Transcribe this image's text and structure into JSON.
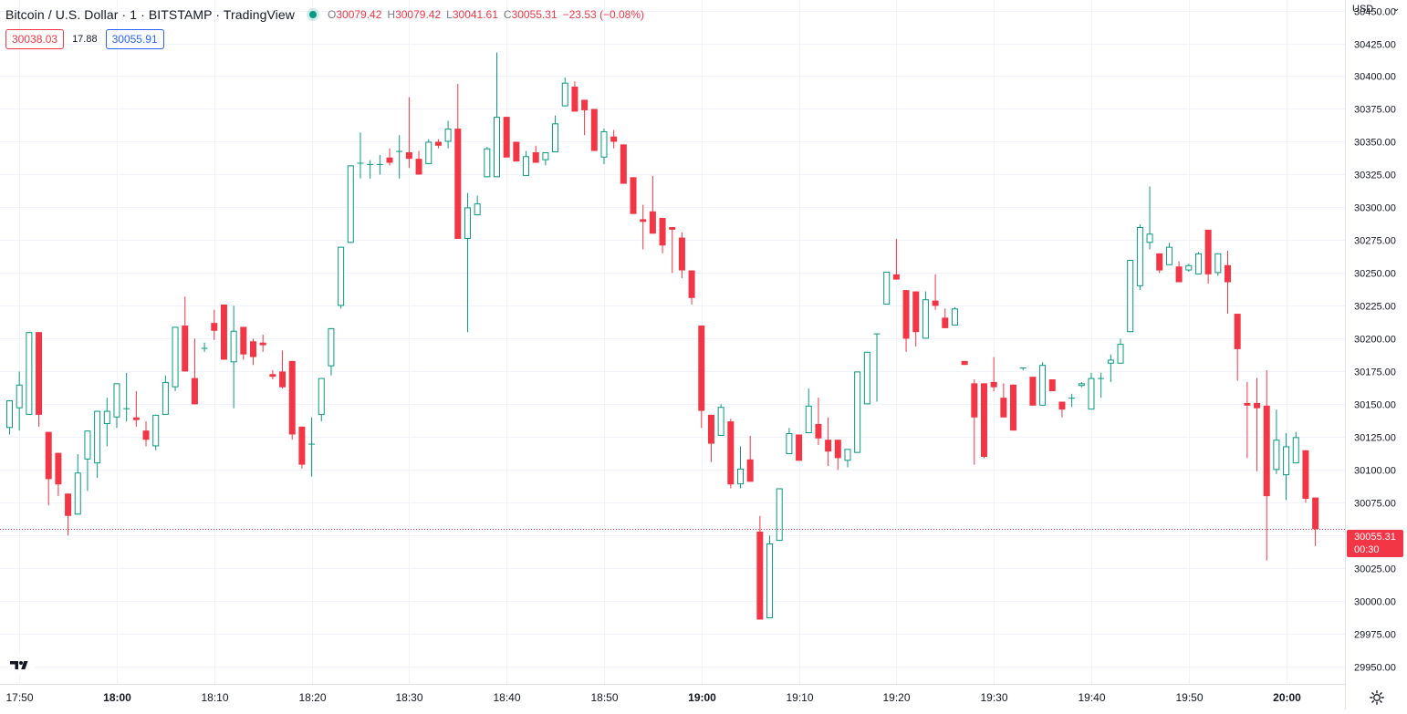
{
  "header": {
    "symbol_title": "Bitcoin / U.S. Dollar · 1 · BITSTAMP · TradingView",
    "ohlc": {
      "o_label": "O",
      "o_value": "30079.42",
      "h_label": "H",
      "h_value": "30079.42",
      "l_label": "L",
      "l_value": "30041.61",
      "c_label": "C",
      "c_value": "30055.31",
      "change": "−23.53 (−0.08%)"
    }
  },
  "quote": {
    "sell": "30038.03",
    "spread": "17.88",
    "buy": "30055.91"
  },
  "price_scale": {
    "currency": "USD",
    "caret": "⌄"
  },
  "last_price": {
    "value": "30055.31",
    "countdown": "00:30"
  },
  "colors": {
    "up": "#089981",
    "down": "#f23645",
    "grid": "#f0f3fa",
    "text": "#131722"
  },
  "icons": {
    "logo": "tradingview-logo-icon",
    "settings": "gear-icon"
  },
  "chart_data": {
    "type": "candlestick",
    "interval_minutes": 1,
    "x_start": "17:49",
    "y_range": [
      29937,
      30458
    ],
    "y_ticks": [
      29950,
      29975,
      30000,
      30025,
      30050,
      30075,
      30100,
      30125,
      30150,
      30175,
      30200,
      30225,
      30250,
      30275,
      30300,
      30325,
      30350,
      30375,
      30400,
      30425,
      30450
    ],
    "y_tick_labels": [
      "29950.00",
      "29975.00",
      "30000.00",
      "30025.00",
      "30050.00",
      "30075.00",
      "30100.00",
      "30125.00",
      "30150.00",
      "30175.00",
      "30200.00",
      "30225.00",
      "30250.00",
      "30275.00",
      "30300.00",
      "30325.00",
      "30350.00",
      "30375.00",
      "30400.00",
      "30425.00",
      "30450.00"
    ],
    "x_ticks": [
      {
        "i": 1,
        "label": "17:50",
        "bold": false
      },
      {
        "i": 11,
        "label": "18:00",
        "bold": true
      },
      {
        "i": 21,
        "label": "18:10",
        "bold": false
      },
      {
        "i": 31,
        "label": "18:20",
        "bold": false
      },
      {
        "i": 41,
        "label": "18:30",
        "bold": false
      },
      {
        "i": 51,
        "label": "18:40",
        "bold": false
      },
      {
        "i": 61,
        "label": "18:50",
        "bold": false
      },
      {
        "i": 71,
        "label": "19:00",
        "bold": true
      },
      {
        "i": 81,
        "label": "19:10",
        "bold": false
      },
      {
        "i": 91,
        "label": "19:20",
        "bold": false
      },
      {
        "i": 101,
        "label": "19:30",
        "bold": false
      },
      {
        "i": 111,
        "label": "19:40",
        "bold": false
      },
      {
        "i": 121,
        "label": "19:50",
        "bold": false
      },
      {
        "i": 131,
        "label": "20:00",
        "bold": true
      }
    ],
    "candles": [
      {
        "o": 30132,
        "h": 30153,
        "l": 30127,
        "c": 30153
      },
      {
        "o": 30147,
        "h": 30175,
        "l": 30130,
        "c": 30165
      },
      {
        "o": 30142,
        "h": 30205,
        "l": 30142,
        "c": 30205
      },
      {
        "o": 30205,
        "h": 30205,
        "l": 30133,
        "c": 30142
      },
      {
        "o": 30129,
        "h": 30129,
        "l": 30073,
        "c": 30093
      },
      {
        "o": 30113,
        "h": 30113,
        "l": 30080,
        "c": 30089
      },
      {
        "o": 30082,
        "h": 30082,
        "l": 30050,
        "c": 30065
      },
      {
        "o": 30066,
        "h": 30112,
        "l": 30066,
        "c": 30098
      },
      {
        "o": 30108,
        "h": 30130,
        "l": 30084,
        "c": 30130
      },
      {
        "o": 30105,
        "h": 30145,
        "l": 30094,
        "c": 30145
      },
      {
        "o": 30135,
        "h": 30155,
        "l": 30118,
        "c": 30145
      },
      {
        "o": 30140,
        "h": 30166,
        "l": 30132,
        "c": 30166
      },
      {
        "o": 30147,
        "h": 30174,
        "l": 30137,
        "c": 30147
      },
      {
        "o": 30140,
        "h": 30160,
        "l": 30133,
        "c": 30138
      },
      {
        "o": 30130,
        "h": 30137,
        "l": 30118,
        "c": 30123
      },
      {
        "o": 30118,
        "h": 30142,
        "l": 30115,
        "c": 30142
      },
      {
        "o": 30142,
        "h": 30172,
        "l": 30142,
        "c": 30167
      },
      {
        "o": 30163,
        "h": 30209,
        "l": 30160,
        "c": 30209
      },
      {
        "o": 30210,
        "h": 30232,
        "l": 30175,
        "c": 30175
      },
      {
        "o": 30170,
        "h": 30200,
        "l": 30150,
        "c": 30150
      },
      {
        "o": 30193,
        "h": 30197,
        "l": 30190,
        "c": 30193
      },
      {
        "o": 30212,
        "h": 30222,
        "l": 30199,
        "c": 30206
      },
      {
        "o": 30226,
        "h": 30226,
        "l": 30184,
        "c": 30184
      },
      {
        "o": 30182,
        "h": 30225,
        "l": 30147,
        "c": 30206
      },
      {
        "o": 30209,
        "h": 30209,
        "l": 30184,
        "c": 30188
      },
      {
        "o": 30198,
        "h": 30200,
        "l": 30180,
        "c": 30186
      },
      {
        "o": 30197,
        "h": 30203,
        "l": 30190,
        "c": 30195
      },
      {
        "o": 30173,
        "h": 30176,
        "l": 30169,
        "c": 30171
      },
      {
        "o": 30175,
        "h": 30191,
        "l": 30162,
        "c": 30163
      },
      {
        "o": 30183,
        "h": 30183,
        "l": 30123,
        "c": 30127
      },
      {
        "o": 30133,
        "h": 30133,
        "l": 30101,
        "c": 30104
      },
      {
        "o": 30120,
        "h": 30140,
        "l": 30095,
        "c": 30120
      },
      {
        "o": 30142,
        "h": 30170,
        "l": 30137,
        "c": 30170
      },
      {
        "o": 30179,
        "h": 30208,
        "l": 30172,
        "c": 30208
      },
      {
        "o": 30225,
        "h": 30270,
        "l": 30223,
        "c": 30270
      },
      {
        "o": 30273,
        "h": 30332,
        "l": 30273,
        "c": 30332
      },
      {
        "o": 30334,
        "h": 30357,
        "l": 30322,
        "c": 30334
      },
      {
        "o": 30333,
        "h": 30336,
        "l": 30322,
        "c": 30333
      },
      {
        "o": 30333,
        "h": 30340,
        "l": 30325,
        "c": 30333
      },
      {
        "o": 30338,
        "h": 30345,
        "l": 30332,
        "c": 30334
      },
      {
        "o": 30343,
        "h": 30355,
        "l": 30322,
        "c": 30343
      },
      {
        "o": 30342,
        "h": 30384,
        "l": 30330,
        "c": 30337
      },
      {
        "o": 30337,
        "h": 30343,
        "l": 30325,
        "c": 30325
      },
      {
        "o": 30333,
        "h": 30352,
        "l": 30333,
        "c": 30350
      },
      {
        "o": 30350,
        "h": 30352,
        "l": 30345,
        "c": 30347
      },
      {
        "o": 30350,
        "h": 30366,
        "l": 30345,
        "c": 30360
      },
      {
        "o": 30360,
        "h": 30394,
        "l": 30276,
        "c": 30276
      },
      {
        "o": 30276,
        "h": 30311,
        "l": 30205,
        "c": 30300
      },
      {
        "o": 30294,
        "h": 30309,
        "l": 30294,
        "c": 30303
      },
      {
        "o": 30323,
        "h": 30346,
        "l": 30323,
        "c": 30345
      },
      {
        "o": 30323,
        "h": 30418,
        "l": 30323,
        "c": 30369
      },
      {
        "o": 30369,
        "h": 30369,
        "l": 30338,
        "c": 30338
      },
      {
        "o": 30350,
        "h": 30350,
        "l": 30335,
        "c": 30335
      },
      {
        "o": 30324,
        "h": 30343,
        "l": 30324,
        "c": 30339
      },
      {
        "o": 30342,
        "h": 30347,
        "l": 30335,
        "c": 30334
      },
      {
        "o": 30336,
        "h": 30342,
        "l": 30332,
        "c": 30342
      },
      {
        "o": 30342,
        "h": 30370,
        "l": 30342,
        "c": 30364
      },
      {
        "o": 30377,
        "h": 30399,
        "l": 30377,
        "c": 30395
      },
      {
        "o": 30392,
        "h": 30396,
        "l": 30373,
        "c": 30373
      },
      {
        "o": 30382,
        "h": 30382,
        "l": 30355,
        "c": 30374
      },
      {
        "o": 30375,
        "h": 30375,
        "l": 30343,
        "c": 30343
      },
      {
        "o": 30338,
        "h": 30360,
        "l": 30333,
        "c": 30358
      },
      {
        "o": 30354,
        "h": 30359,
        "l": 30345,
        "c": 30350
      },
      {
        "o": 30348,
        "h": 30348,
        "l": 30318,
        "c": 30318
      },
      {
        "o": 30323,
        "h": 30323,
        "l": 30295,
        "c": 30295
      },
      {
        "o": 30291,
        "h": 30302,
        "l": 30268,
        "c": 30289
      },
      {
        "o": 30297,
        "h": 30324,
        "l": 30280,
        "c": 30280
      },
      {
        "o": 30292,
        "h": 30292,
        "l": 30265,
        "c": 30271
      },
      {
        "o": 30285,
        "h": 30285,
        "l": 30250,
        "c": 30283
      },
      {
        "o": 30277,
        "h": 30281,
        "l": 30246,
        "c": 30252
      },
      {
        "o": 30252,
        "h": 30252,
        "l": 30226,
        "c": 30231
      },
      {
        "o": 30210,
        "h": 30210,
        "l": 30132,
        "c": 30145
      },
      {
        "o": 30142,
        "h": 30142,
        "l": 30106,
        "c": 30120
      },
      {
        "o": 30126,
        "h": 30150,
        "l": 30126,
        "c": 30148
      },
      {
        "o": 30137,
        "h": 30139,
        "l": 30086,
        "c": 30089
      },
      {
        "o": 30089,
        "h": 30118,
        "l": 30086,
        "c": 30101
      },
      {
        "o": 30108,
        "h": 30126,
        "l": 30091,
        "c": 30091
      },
      {
        "o": 30053,
        "h": 30065,
        "l": 29986,
        "c": 29986
      },
      {
        "o": 29987,
        "h": 30050,
        "l": 29987,
        "c": 30044
      },
      {
        "o": 30046,
        "h": 30086,
        "l": 30046,
        "c": 30086
      },
      {
        "o": 30112,
        "h": 30132,
        "l": 30112,
        "c": 30128
      },
      {
        "o": 30127,
        "h": 30127,
        "l": 30107,
        "c": 30107
      },
      {
        "o": 30128,
        "h": 30162,
        "l": 30128,
        "c": 30149
      },
      {
        "o": 30135,
        "h": 30155,
        "l": 30119,
        "c": 30124
      },
      {
        "o": 30123,
        "h": 30140,
        "l": 30103,
        "c": 30114
      },
      {
        "o": 30123,
        "h": 30123,
        "l": 30100,
        "c": 30109
      },
      {
        "o": 30107,
        "h": 30115,
        "l": 30102,
        "c": 30116
      },
      {
        "o": 30113,
        "h": 30175,
        "l": 30113,
        "c": 30175
      },
      {
        "o": 30150,
        "h": 30190,
        "l": 30150,
        "c": 30190
      },
      {
        "o": 30204,
        "h": 30204,
        "l": 30152,
        "c": 30204
      },
      {
        "o": 30226,
        "h": 30251,
        "l": 30226,
        "c": 30251
      },
      {
        "o": 30249,
        "h": 30276,
        "l": 30246,
        "c": 30245
      },
      {
        "o": 30237,
        "h": 30237,
        "l": 30190,
        "c": 30200
      },
      {
        "o": 30236,
        "h": 30236,
        "l": 30194,
        "c": 30205
      },
      {
        "o": 30200,
        "h": 30236,
        "l": 30200,
        "c": 30230
      },
      {
        "o": 30229,
        "h": 30249,
        "l": 30222,
        "c": 30225
      },
      {
        "o": 30216,
        "h": 30223,
        "l": 30208,
        "c": 30208
      },
      {
        "o": 30210,
        "h": 30224,
        "l": 30210,
        "c": 30223
      },
      {
        "o": 30183,
        "h": 30183,
        "l": 30180,
        "c": 30180
      },
      {
        "o": 30166,
        "h": 30169,
        "l": 30104,
        "c": 30140
      },
      {
        "o": 30166,
        "h": 30166,
        "l": 30109,
        "c": 30110
      },
      {
        "o": 30167,
        "h": 30186,
        "l": 30160,
        "c": 30163
      },
      {
        "o": 30155,
        "h": 30166,
        "l": 30140,
        "c": 30140
      },
      {
        "o": 30165,
        "h": 30165,
        "l": 30130,
        "c": 30130
      },
      {
        "o": 30178,
        "h": 30178,
        "l": 30176,
        "c": 30178
      },
      {
        "o": 30171,
        "h": 30171,
        "l": 30149,
        "c": 30149
      },
      {
        "o": 30149,
        "h": 30182,
        "l": 30149,
        "c": 30180
      },
      {
        "o": 30169,
        "h": 30169,
        "l": 30160,
        "c": 30160
      },
      {
        "o": 30152,
        "h": 30152,
        "l": 30140,
        "c": 30146
      },
      {
        "o": 30155,
        "h": 30158,
        "l": 30148,
        "c": 30155
      },
      {
        "o": 30164,
        "h": 30167,
        "l": 30163,
        "c": 30166
      },
      {
        "o": 30146,
        "h": 30174,
        "l": 30146,
        "c": 30170
      },
      {
        "o": 30170,
        "h": 30174,
        "l": 30155,
        "c": 30170
      },
      {
        "o": 30181,
        "h": 30188,
        "l": 30167,
        "c": 30184
      },
      {
        "o": 30181,
        "h": 30200,
        "l": 30181,
        "c": 30196
      },
      {
        "o": 30205,
        "h": 30260,
        "l": 30205,
        "c": 30260
      },
      {
        "o": 30240,
        "h": 30287,
        "l": 30237,
        "c": 30285
      },
      {
        "o": 30273,
        "h": 30316,
        "l": 30268,
        "c": 30280
      },
      {
        "o": 30265,
        "h": 30265,
        "l": 30250,
        "c": 30252
      },
      {
        "o": 30256,
        "h": 30273,
        "l": 30256,
        "c": 30270
      },
      {
        "o": 30255,
        "h": 30259,
        "l": 30243,
        "c": 30243
      },
      {
        "o": 30252,
        "h": 30257,
        "l": 30251,
        "c": 30256
      },
      {
        "o": 30249,
        "h": 30266,
        "l": 30249,
        "c": 30265
      },
      {
        "o": 30283,
        "h": 30283,
        "l": 30242,
        "c": 30249
      },
      {
        "o": 30250,
        "h": 30265,
        "l": 30248,
        "c": 30265
      },
      {
        "o": 30256,
        "h": 30267,
        "l": 30219,
        "c": 30243
      },
      {
        "o": 30219,
        "h": 30219,
        "l": 30168,
        "c": 30192
      },
      {
        "o": 30151,
        "h": 30167,
        "l": 30109,
        "c": 30149
      },
      {
        "o": 30151,
        "h": 30170,
        "l": 30099,
        "c": 30147
      },
      {
        "o": 30149,
        "h": 30176,
        "l": 30031,
        "c": 30080
      },
      {
        "o": 30100,
        "h": 30146,
        "l": 30097,
        "c": 30123
      },
      {
        "o": 30096,
        "h": 30128,
        "l": 30077,
        "c": 30118
      },
      {
        "o": 30105,
        "h": 30129,
        "l": 30105,
        "c": 30125
      },
      {
        "o": 30115,
        "h": 30115,
        "l": 30075,
        "c": 30078
      },
      {
        "o": 30079,
        "h": 30079,
        "l": 30042,
        "c": 30055
      }
    ]
  }
}
